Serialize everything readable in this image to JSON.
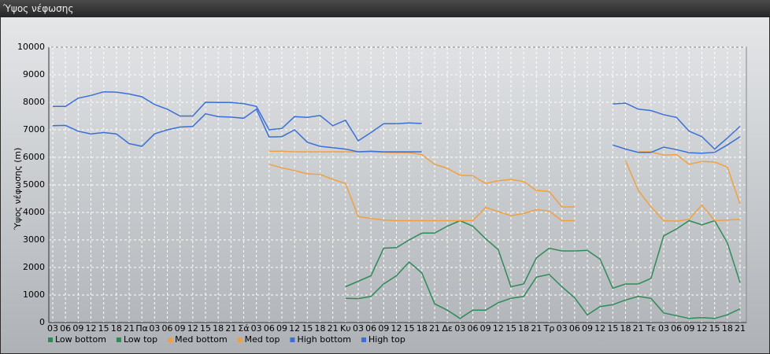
{
  "chart_data": {
    "type": "line",
    "title": "Ύψος νέφωσης",
    "y_label": "Ύψος νέφωσης (m)",
    "categories": [
      "03",
      "06",
      "09",
      "12",
      "15",
      "18",
      "21",
      "Πα",
      "03",
      "06",
      "09",
      "12",
      "15",
      "18",
      "21",
      "Σά",
      "03",
      "06",
      "09",
      "12",
      "15",
      "18",
      "21",
      "Κυ",
      "03",
      "06",
      "09",
      "12",
      "15",
      "18",
      "21",
      "Δε",
      "03",
      "06",
      "09",
      "12",
      "15",
      "18",
      "21",
      "Τρ",
      "03",
      "06",
      "09",
      "12",
      "15",
      "18",
      "21",
      "Τε",
      "03",
      "06",
      "09",
      "12",
      "15",
      "18",
      "21"
    ],
    "ylim": [
      0,
      10000
    ],
    "yticks": [
      0,
      1000,
      2000,
      3000,
      4000,
      5000,
      6000,
      7000,
      8000,
      9000,
      10000
    ],
    "grid": true,
    "series": [
      {
        "name": "Low bottom",
        "color": "#2e8b57",
        "values": [
          null,
          null,
          null,
          null,
          null,
          null,
          null,
          null,
          null,
          null,
          null,
          null,
          null,
          null,
          null,
          null,
          null,
          null,
          null,
          null,
          null,
          null,
          null,
          880,
          870,
          950,
          1400,
          1700,
          2200,
          1800,
          680,
          450,
          150,
          450,
          450,
          720,
          880,
          950,
          1650,
          1750,
          1300,
          900,
          280,
          580,
          650,
          820,
          950,
          880,
          350,
          250,
          150,
          180,
          150,
          280,
          500
        ]
      },
      {
        "name": "Low top",
        "color": "#2e8b57",
        "values": [
          null,
          null,
          null,
          null,
          null,
          null,
          null,
          null,
          null,
          null,
          null,
          null,
          null,
          null,
          null,
          null,
          null,
          null,
          null,
          null,
          null,
          null,
          null,
          1300,
          1500,
          1700,
          2700,
          2720,
          3000,
          3250,
          3250,
          3500,
          3700,
          3500,
          3050,
          2650,
          1300,
          1400,
          2350,
          2700,
          2600,
          2600,
          2620,
          2300,
          1250,
          1400,
          1400,
          1600,
          3150,
          3400,
          3700,
          3550,
          3700,
          2900,
          1450
        ]
      },
      {
        "name": "Med bottom",
        "color": "#f0a040",
        "values": [
          null,
          null,
          null,
          null,
          null,
          null,
          null,
          null,
          null,
          null,
          null,
          null,
          null,
          null,
          null,
          null,
          null,
          5750,
          5620,
          5520,
          5400,
          5380,
          5200,
          5050,
          3850,
          3780,
          3720,
          3700,
          3700,
          3700,
          3700,
          3700,
          3700,
          3700,
          4180,
          4030,
          3880,
          3960,
          4100,
          4050,
          3700,
          3700,
          null,
          null,
          null,
          5880,
          4800,
          4200,
          3700,
          3680,
          3750,
          4270,
          3700,
          3720,
          3750
        ]
      },
      {
        "name": "Med top",
        "color": "#f0a040",
        "values": [
          null,
          null,
          null,
          null,
          null,
          null,
          null,
          null,
          null,
          null,
          null,
          null,
          null,
          null,
          null,
          null,
          null,
          6220,
          6220,
          6200,
          6200,
          6200,
          6200,
          6200,
          6200,
          6200,
          6180,
          6170,
          6170,
          6100,
          5750,
          5600,
          5350,
          5330,
          5050,
          5150,
          5200,
          5120,
          4800,
          4760,
          4200,
          4200,
          null,
          null,
          null,
          null,
          6200,
          6200,
          6080,
          6100,
          5750,
          5850,
          5830,
          5650,
          4300
        ]
      },
      {
        "name": "High bottom",
        "color": "#3a6fd8",
        "values": [
          7150,
          7160,
          6950,
          6850,
          6900,
          6850,
          6500,
          6400,
          6850,
          7000,
          7100,
          7120,
          7580,
          7480,
          7460,
          7420,
          7750,
          6740,
          6750,
          7000,
          6550,
          6400,
          6350,
          6300,
          6200,
          6220,
          6200,
          6200,
          6200,
          6200,
          null,
          null,
          null,
          null,
          null,
          null,
          null,
          null,
          null,
          null,
          null,
          null,
          null,
          null,
          6450,
          6300,
          6180,
          6180,
          6370,
          6280,
          6170,
          6150,
          6180,
          6450,
          6750
        ]
      },
      {
        "name": "High top",
        "color": "#3a6fd8",
        "values": [
          7850,
          7850,
          8150,
          8250,
          8380,
          8370,
          8300,
          8200,
          7920,
          7750,
          7500,
          7500,
          8000,
          7990,
          7990,
          7950,
          7850,
          7000,
          7050,
          7480,
          7450,
          7520,
          7150,
          7350,
          6600,
          6900,
          7220,
          7220,
          7250,
          7230,
          null,
          null,
          null,
          null,
          null,
          null,
          null,
          null,
          null,
          null,
          null,
          null,
          null,
          null,
          7940,
          7970,
          7750,
          7700,
          7550,
          7450,
          6950,
          6750,
          6300,
          6700,
          7130
        ]
      }
    ]
  }
}
